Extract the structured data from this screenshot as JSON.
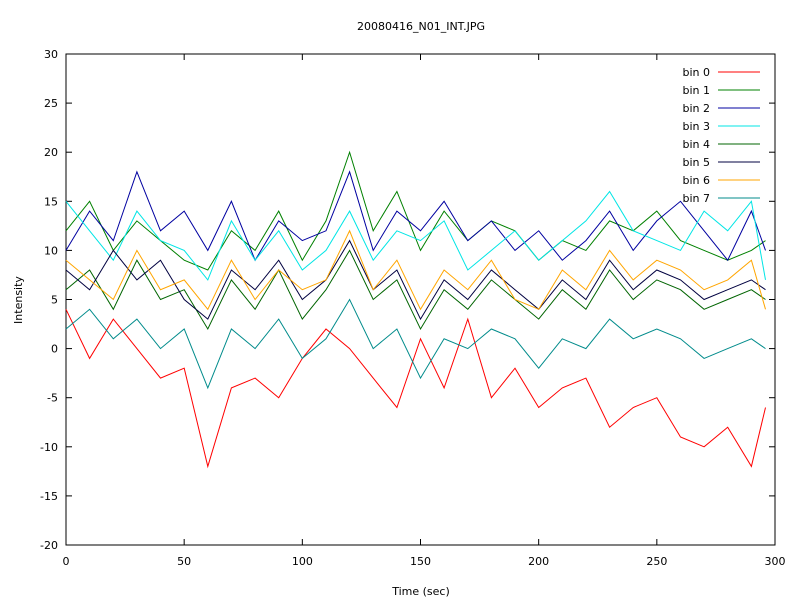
{
  "chart_data": {
    "type": "line",
    "title": "20080416_N01_INT.JPG",
    "xlabel": "Time (sec)",
    "ylabel": "Intensity",
    "xlim": [
      0,
      300
    ],
    "ylim": [
      -20,
      30
    ],
    "xticks": [
      0,
      50,
      100,
      150,
      200,
      250,
      300
    ],
    "yticks": [
      -20,
      -15,
      -10,
      -5,
      0,
      5,
      10,
      15,
      20,
      25,
      30
    ],
    "grid": false,
    "legend_position": "top-right",
    "x": [
      0,
      10,
      20,
      30,
      40,
      50,
      60,
      70,
      80,
      90,
      100,
      110,
      120,
      130,
      140,
      150,
      160,
      170,
      180,
      190,
      200,
      210,
      220,
      230,
      240,
      250,
      260,
      270,
      280,
      290,
      296
    ],
    "series": [
      {
        "name": "bin 0",
        "color": "#ff0000",
        "values": [
          4,
          -1,
          3,
          0,
          -3,
          -2,
          -12,
          -4,
          -3,
          -5,
          -1,
          2,
          0,
          -3,
          -6,
          1,
          -4,
          3,
          -5,
          -2,
          -6,
          -4,
          -3,
          -8,
          -6,
          -5,
          -9,
          -10,
          -8,
          -12,
          -6
        ]
      },
      {
        "name": "bin 1",
        "color": "#008000",
        "values": [
          12,
          15,
          10,
          13,
          11,
          9,
          8,
          12,
          10,
          14,
          9,
          13,
          20,
          12,
          16,
          10,
          14,
          11,
          13,
          12,
          9,
          11,
          10,
          13,
          12,
          14,
          11,
          10,
          9,
          10,
          11
        ]
      },
      {
        "name": "bin 2",
        "color": "#0000a0",
        "values": [
          10,
          14,
          11,
          18,
          12,
          14,
          10,
          15,
          9,
          13,
          11,
          12,
          18,
          10,
          14,
          12,
          15,
          11,
          13,
          10,
          12,
          9,
          11,
          14,
          10,
          13,
          15,
          12,
          9,
          14,
          10
        ]
      },
      {
        "name": "bin 3",
        "color": "#00e5e5",
        "values": [
          15,
          12,
          9,
          14,
          11,
          10,
          7,
          13,
          9,
          12,
          8,
          10,
          14,
          9,
          12,
          11,
          13,
          8,
          10,
          12,
          9,
          11,
          13,
          16,
          12,
          11,
          10,
          14,
          12,
          15,
          7
        ]
      },
      {
        "name": "bin 4",
        "color": "#006400",
        "values": [
          6,
          8,
          4,
          9,
          5,
          6,
          2,
          7,
          4,
          8,
          3,
          6,
          10,
          5,
          7,
          2,
          6,
          4,
          7,
          5,
          3,
          6,
          4,
          8,
          5,
          7,
          6,
          4,
          5,
          6,
          5
        ]
      },
      {
        "name": "bin 5",
        "color": "#000040",
        "values": [
          8,
          6,
          10,
          7,
          9,
          5,
          3,
          8,
          6,
          9,
          5,
          7,
          11,
          6,
          8,
          3,
          7,
          5,
          8,
          6,
          4,
          7,
          5,
          9,
          6,
          8,
          7,
          5,
          6,
          7,
          6
        ]
      },
      {
        "name": "bin 6",
        "color": "#ffa500",
        "values": [
          9,
          7,
          5,
          10,
          6,
          7,
          4,
          9,
          5,
          8,
          6,
          7,
          12,
          6,
          9,
          4,
          8,
          6,
          9,
          5,
          4,
          8,
          6,
          10,
          7,
          9,
          8,
          6,
          7,
          9,
          4
        ]
      },
      {
        "name": "bin 7",
        "color": "#008b8b",
        "values": [
          2,
          4,
          1,
          3,
          0,
          2,
          -4,
          2,
          0,
          3,
          -1,
          1,
          5,
          0,
          2,
          -3,
          1,
          0,
          2,
          1,
          -2,
          1,
          0,
          3,
          1,
          2,
          1,
          -1,
          0,
          1,
          0
        ]
      }
    ]
  }
}
